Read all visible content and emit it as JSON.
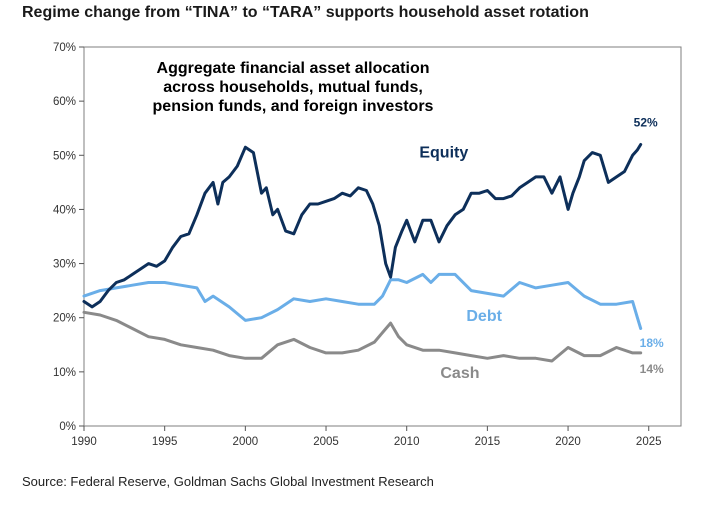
{
  "title": "Regime change from “TINA” to “TARA” supports household asset rotation",
  "source": "Source: Federal Reserve, Goldman Sachs Global Investment Research",
  "colors": {
    "equity": "#0d2f5a",
    "debt": "#6aaee8",
    "cash": "#8a8a8a",
    "axis": "#555555",
    "frame": "#7f7f7f"
  },
  "chart_data": {
    "type": "line",
    "title": "",
    "xlabel": "",
    "ylabel": "",
    "xlim": [
      1990,
      2027
    ],
    "ylim": [
      0,
      70
    ],
    "grid": false,
    "x_ticks": [
      "1990",
      "1995",
      "2000",
      "2005",
      "2010",
      "2015",
      "2020",
      "2025"
    ],
    "y_ticks": [
      "0%",
      "10%",
      "20%",
      "30%",
      "40%",
      "50%",
      "60%",
      "70%"
    ],
    "annotation_lines": [
      "Aggregate financial asset allocation",
      "across households, mutual funds,",
      "pension funds, and foreign investors"
    ],
    "series": [
      {
        "name": "Equity",
        "end_label": "52%",
        "x": [
          1990,
          1990.5,
          1991,
          1991.5,
          1992,
          1992.5,
          1993,
          1993.5,
          1994,
          1994.5,
          1995,
          1995.5,
          1996,
          1996.5,
          1997,
          1997.5,
          1998,
          1998.3,
          1998.6,
          1999,
          1999.5,
          2000,
          2000.5,
          2001,
          2001.3,
          2001.7,
          2002,
          2002.5,
          2003,
          2003.5,
          2004,
          2004.5,
          2005,
          2005.5,
          2006,
          2006.5,
          2007,
          2007.5,
          2007.9,
          2008.3,
          2008.7,
          2009,
          2009.3,
          2009.7,
          2010,
          2010.5,
          2011,
          2011.5,
          2012,
          2012.5,
          2013,
          2013.5,
          2014,
          2014.5,
          2015,
          2015.5,
          2016,
          2016.5,
          2017,
          2017.5,
          2018,
          2018.5,
          2019,
          2019.5,
          2020,
          2020.3,
          2020.7,
          2021,
          2021.5,
          2022,
          2022.5,
          2023,
          2023.5,
          2024,
          2024.3,
          2024.5
        ],
        "y": [
          23,
          22,
          23,
          25,
          26.5,
          27,
          28,
          29,
          30,
          29.5,
          30.5,
          33,
          35,
          35.5,
          39,
          43,
          45,
          41,
          45,
          46,
          48,
          51.5,
          50.5,
          43,
          44,
          39,
          40,
          36,
          35.5,
          39,
          41,
          41,
          41.5,
          42,
          43,
          42.5,
          44,
          43.5,
          41,
          37,
          30,
          27.5,
          33,
          36,
          38,
          34,
          38,
          38,
          34,
          37,
          39,
          40,
          43,
          43,
          43.5,
          42,
          42,
          42.5,
          44,
          45,
          46,
          46,
          43,
          46,
          40,
          43,
          46,
          49,
          50.5,
          50,
          45,
          46,
          47,
          50,
          51,
          52
        ]
      },
      {
        "name": "Debt",
        "end_label": "18%",
        "x": [
          1990,
          1991,
          1992,
          1993,
          1994,
          1995,
          1996,
          1997,
          1997.5,
          1998,
          1999,
          2000,
          2001,
          2002,
          2003,
          2004,
          2005,
          2006,
          2007,
          2008,
          2008.5,
          2009,
          2009.5,
          2010,
          2011,
          2011.5,
          2012,
          2013,
          2014,
          2015,
          2016,
          2017,
          2018,
          2019,
          2020,
          2021,
          2022,
          2023,
          2024,
          2024.3,
          2024.5
        ],
        "y": [
          24,
          25,
          25.5,
          26,
          26.5,
          26.5,
          26,
          25.5,
          23,
          24,
          22,
          19.5,
          20,
          21.5,
          23.5,
          23,
          23.5,
          23,
          22.5,
          22.5,
          24,
          27,
          27,
          26.5,
          28,
          26.5,
          28,
          28,
          25,
          24.5,
          24,
          26.5,
          25.5,
          26,
          26.5,
          24,
          22.5,
          22.5,
          23,
          20,
          18
        ]
      },
      {
        "name": "Cash",
        "end_label": "14%",
        "x": [
          1990,
          1991,
          1992,
          1993,
          1994,
          1995,
          1996,
          1997,
          1998,
          1999,
          2000,
          2001,
          2002,
          2003,
          2004,
          2005,
          2006,
          2007,
          2008,
          2009,
          2009.5,
          2010,
          2011,
          2012,
          2013,
          2014,
          2015,
          2016,
          2017,
          2018,
          2019,
          2020,
          2021,
          2022,
          2023,
          2024,
          2024.5
        ],
        "y": [
          21,
          20.5,
          19.5,
          18,
          16.5,
          16,
          15,
          14.5,
          14,
          13,
          12.5,
          12.5,
          15,
          16,
          14.5,
          13.5,
          13.5,
          14,
          15.5,
          19,
          16.5,
          15,
          14,
          14,
          13.5,
          13,
          12.5,
          13,
          12.5,
          12.5,
          12,
          14.5,
          13,
          13,
          14.5,
          13.5,
          13.5
        ]
      }
    ]
  }
}
